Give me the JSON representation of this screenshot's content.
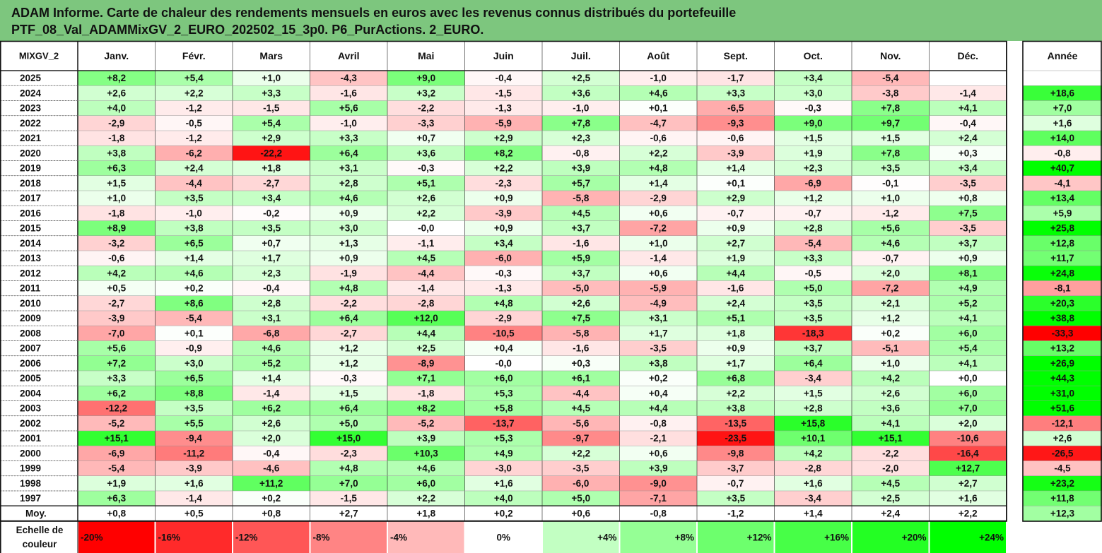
{
  "title": {
    "line1": "ADAM Informe. Carte de chaleur des rendements mensuels en euros avec les revenus connus distribués du portefeuille",
    "line2": "PTF_08_Val_ADAMMixGV_2_EURO_202502_15_3p0. P6_PurActions. 2_EURO."
  },
  "chart_data": {
    "type": "heatmap",
    "months": [
      "Janv.",
      "Févr.",
      "Mars",
      "Avril",
      "Mai",
      "Juin",
      "Juil.",
      "Août",
      "Sept.",
      "Oct.",
      "Nov.",
      "Déc."
    ],
    "year_header": "Année",
    "rows": [
      {
        "year": "2025",
        "values": [
          8.2,
          5.4,
          1.0,
          -4.3,
          9.0,
          -0.4,
          2.5,
          -1.0,
          -1.7,
          3.4,
          -5.4,
          null
        ],
        "annual": null
      },
      {
        "year": "2024",
        "values": [
          2.6,
          2.2,
          3.3,
          -1.6,
          3.2,
          -1.5,
          3.6,
          4.6,
          3.3,
          3.0,
          -3.8,
          -1.4
        ],
        "annual": 18.6
      },
      {
        "year": "2023",
        "values": [
          4.0,
          -1.2,
          -1.5,
          5.6,
          -2.2,
          -1.3,
          -1.0,
          0.1,
          -6.5,
          -0.3,
          7.8,
          4.1
        ],
        "annual": 7.0
      },
      {
        "year": "2022",
        "values": [
          -2.9,
          -0.5,
          5.4,
          -1.0,
          -3.3,
          -5.9,
          7.8,
          -4.7,
          -9.3,
          9.0,
          9.7,
          -0.4
        ],
        "annual": 1.6
      },
      {
        "year": "2021",
        "values": [
          -1.8,
          -1.2,
          2.9,
          3.3,
          0.7,
          2.9,
          2.3,
          -0.6,
          -0.6,
          1.5,
          1.5,
          2.4
        ],
        "annual": 14.0
      },
      {
        "year": "2020",
        "values": [
          3.8,
          -6.2,
          -22.2,
          6.4,
          3.6,
          8.2,
          -0.8,
          2.2,
          -3.9,
          1.9,
          7.8,
          0.3
        ],
        "annual": -0.8
      },
      {
        "year": "2019",
        "values": [
          6.3,
          2.4,
          1.8,
          3.1,
          -0.3,
          2.2,
          3.9,
          4.8,
          1.4,
          2.3,
          3.5,
          3.4
        ],
        "annual": 40.7
      },
      {
        "year": "2018",
        "values": [
          1.5,
          -4.4,
          -2.7,
          2.8,
          5.1,
          -2.3,
          5.7,
          1.4,
          0.1,
          -6.9,
          -0.1,
          -3.5
        ],
        "annual": -4.1
      },
      {
        "year": "2017",
        "values": [
          1.0,
          3.5,
          3.4,
          4.6,
          2.6,
          0.9,
          -5.8,
          -2.9,
          2.9,
          1.2,
          1.0,
          0.8
        ],
        "annual": 13.4
      },
      {
        "year": "2016",
        "values": [
          -1.8,
          -1.0,
          -0.2,
          0.9,
          2.2,
          -3.9,
          4.5,
          0.6,
          -0.7,
          -0.7,
          -1.2,
          7.5
        ],
        "annual": 5.9
      },
      {
        "year": "2015",
        "values": [
          8.9,
          3.8,
          3.5,
          3.0,
          -0.0,
          0.9,
          3.7,
          -7.2,
          0.9,
          2.8,
          5.6,
          -3.5
        ],
        "annual": 25.8
      },
      {
        "year": "2014",
        "values": [
          -3.2,
          6.5,
          0.7,
          1.3,
          -1.1,
          3.4,
          -1.6,
          1.0,
          2.7,
          -5.4,
          4.6,
          3.7
        ],
        "annual": 12.8
      },
      {
        "year": "2013",
        "values": [
          -0.6,
          1.4,
          1.7,
          0.9,
          4.5,
          -6.0,
          5.9,
          -1.4,
          1.9,
          3.3,
          -0.7,
          0.9
        ],
        "annual": 11.7
      },
      {
        "year": "2012",
        "values": [
          4.2,
          4.6,
          2.3,
          -1.9,
          -4.4,
          -0.3,
          3.7,
          0.6,
          4.4,
          -0.5,
          2.0,
          8.1
        ],
        "annual": 24.8
      },
      {
        "year": "2011",
        "values": [
          0.5,
          0.2,
          -0.4,
          4.8,
          -1.4,
          -1.3,
          -5.0,
          -5.9,
          -1.6,
          5.0,
          -7.2,
          4.9
        ],
        "annual": -8.1
      },
      {
        "year": "2010",
        "values": [
          -2.7,
          8.6,
          2.8,
          -2.2,
          -2.8,
          4.8,
          2.6,
          -4.9,
          2.4,
          3.5,
          2.1,
          5.2
        ],
        "annual": 20.3
      },
      {
        "year": "2009",
        "values": [
          -3.9,
          -5.4,
          3.1,
          6.4,
          12.0,
          -2.9,
          7.5,
          3.1,
          5.1,
          3.5,
          1.2,
          4.1
        ],
        "annual": 38.8
      },
      {
        "year": "2008",
        "values": [
          -7.0,
          0.1,
          -6.8,
          -2.7,
          4.4,
          -10.5,
          -5.8,
          1.7,
          1.8,
          -18.3,
          0.2,
          6.0
        ],
        "annual": -33.3
      },
      {
        "year": "2007",
        "values": [
          5.6,
          -0.9,
          4.6,
          1.2,
          2.5,
          0.4,
          -1.6,
          -3.5,
          0.9,
          3.7,
          -5.1,
          5.4
        ],
        "annual": 13.2
      },
      {
        "year": "2006",
        "values": [
          7.2,
          3.0,
          5.2,
          1.2,
          -8.9,
          -0.0,
          0.3,
          3.8,
          1.7,
          6.4,
          1.0,
          4.1
        ],
        "annual": 26.9
      },
      {
        "year": "2005",
        "values": [
          3.3,
          6.5,
          1.4,
          -0.3,
          7.1,
          6.0,
          6.1,
          0.2,
          6.8,
          -3.4,
          4.2,
          0.0
        ],
        "annual": 44.3
      },
      {
        "year": "2004",
        "values": [
          6.2,
          8.8,
          -1.4,
          1.5,
          -1.8,
          5.3,
          -4.4,
          0.4,
          2.2,
          1.5,
          2.6,
          6.0
        ],
        "annual": 31.0
      },
      {
        "year": "2003",
        "values": [
          -12.2,
          3.5,
          6.2,
          6.4,
          8.2,
          5.8,
          4.5,
          4.4,
          3.8,
          2.8,
          3.6,
          7.0
        ],
        "annual": 51.6
      },
      {
        "year": "2002",
        "values": [
          -5.2,
          5.5,
          2.6,
          5.0,
          -5.2,
          -13.7,
          -5.6,
          -0.8,
          -13.5,
          15.8,
          4.1,
          2.0
        ],
        "annual": -12.1
      },
      {
        "year": "2001",
        "values": [
          15.1,
          -9.4,
          2.0,
          15.0,
          3.9,
          5.3,
          -9.7,
          -2.1,
          -23.5,
          10.1,
          15.1,
          -10.6
        ],
        "annual": 2.6
      },
      {
        "year": "2000",
        "values": [
          -6.9,
          -11.2,
          -0.4,
          -2.3,
          10.3,
          4.9,
          2.2,
          0.6,
          -9.8,
          4.2,
          -2.2,
          -16.4
        ],
        "annual": -26.5
      },
      {
        "year": "1999",
        "values": [
          -5.4,
          -3.9,
          -4.6,
          4.8,
          4.6,
          -3.0,
          -3.5,
          3.9,
          -3.7,
          -2.8,
          -2.0,
          12.7
        ],
        "annual": -4.5
      },
      {
        "year": "1998",
        "values": [
          1.9,
          1.6,
          11.2,
          7.0,
          6.0,
          1.6,
          -6.0,
          -9.0,
          -0.7,
          1.6,
          4.5,
          2.7
        ],
        "annual": 23.2
      },
      {
        "year": "1997",
        "values": [
          6.3,
          -1.4,
          0.2,
          -1.5,
          2.2,
          4.0,
          5.0,
          -7.1,
          3.5,
          -3.4,
          2.5,
          1.6
        ],
        "annual": 11.8
      }
    ],
    "average_row": {
      "label": "Moy.",
      "values": [
        0.8,
        0.5,
        0.8,
        2.7,
        1.8,
        0.2,
        0.6,
        -0.8,
        -1.2,
        1.4,
        2.4,
        2.2
      ],
      "annual": 12.3
    },
    "scale": {
      "label_line1": "Echelle de",
      "label_line2": "couleur",
      "steps": [
        "-20%",
        "-16%",
        "-12%",
        "-8%",
        "-4%",
        "0%",
        "+4%",
        "+8%",
        "+12%",
        "+16%",
        "+20%",
        "+24%"
      ],
      "step_values": [
        -20,
        -16,
        -12,
        -8,
        -4,
        0,
        4,
        8,
        12,
        16,
        20,
        24
      ]
    },
    "colors": {
      "negative_max": "#ff0000",
      "zero": "#ffffff",
      "positive_max": "#00ff00",
      "title_bar": "#7dc67e"
    }
  }
}
